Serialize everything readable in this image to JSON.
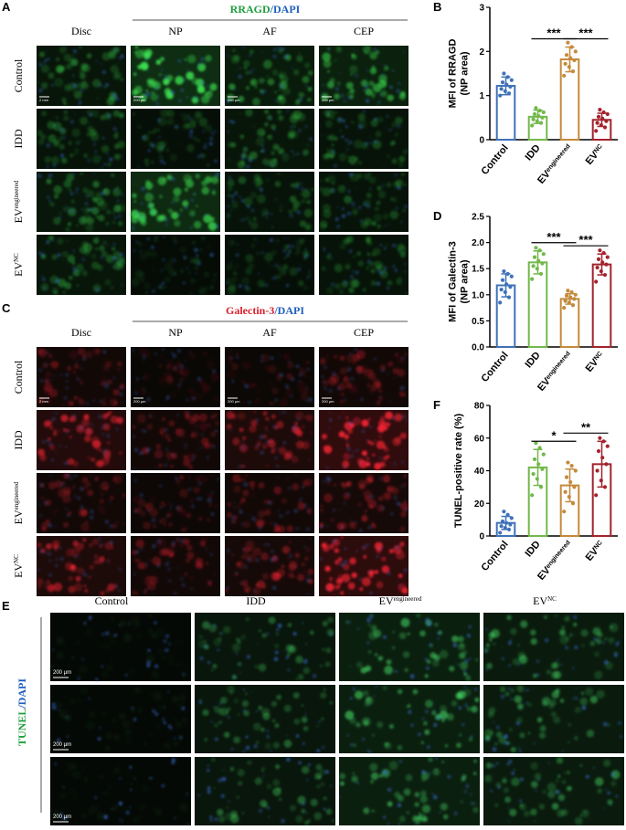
{
  "panel_a": {
    "letter": "A",
    "title": {
      "marker": "RRAGD",
      "stain": "/DAPI"
    },
    "columns": [
      "Disc",
      "NP",
      "AF",
      "CEP"
    ],
    "rows": [
      {
        "base": "Control"
      },
      {
        "base": "IDD"
      },
      {
        "base": "EV",
        "sup": "engineered"
      },
      {
        "base": "EV",
        "sup": "NC"
      }
    ],
    "scale_bars": [
      "2 mm",
      "200 μm",
      "200 μm",
      "200 μm"
    ]
  },
  "panel_c": {
    "letter": "C",
    "title": {
      "marker": "Galectin-3",
      "stain": "/DAPI"
    },
    "columns": [
      "Disc",
      "NP",
      "AF",
      "CEP"
    ],
    "rows": [
      {
        "base": "Control"
      },
      {
        "base": "IDD"
      },
      {
        "base": "EV",
        "sup": "engineered"
      },
      {
        "base": "EV",
        "sup": "NC"
      }
    ],
    "scale_bars": [
      "2 mm",
      "200 μm",
      "200 μm",
      "200 μm"
    ]
  },
  "panel_e": {
    "letter": "E",
    "title": {
      "marker": "TUNEL",
      "stain": "/DAPI"
    },
    "columns": [
      {
        "base": "Control"
      },
      {
        "base": "IDD"
      },
      {
        "base": "EV",
        "sup": "engineered"
      },
      {
        "base": "EV",
        "sup": "NC"
      }
    ],
    "scale_bars": [
      "200 μm",
      "200 μm",
      "200 μm"
    ]
  },
  "chart_data": [
    {
      "type": "bar",
      "letter": "B",
      "y_label": [
        "MFI of RRAGD",
        "(NP area)"
      ],
      "categories": [
        "Control",
        "IDD",
        "EV",
        "EV"
      ],
      "category_superscripts": [
        null,
        null,
        "engineered",
        "NC"
      ],
      "colors": [
        "#3f72b8",
        "#72b84a",
        "#c48a3c",
        "#a3232d"
      ],
      "values": [
        1.22,
        0.52,
        1.82,
        0.45
      ],
      "errors": [
        0.2,
        0.15,
        0.28,
        0.15
      ],
      "points": [
        [
          1.0,
          1.05,
          1.1,
          1.15,
          1.2,
          1.25,
          1.3,
          1.35,
          1.42,
          1.5
        ],
        [
          0.32,
          0.38,
          0.42,
          0.46,
          0.5,
          0.54,
          0.58,
          0.62,
          0.66,
          0.72
        ],
        [
          1.45,
          1.55,
          1.65,
          1.72,
          1.8,
          1.85,
          1.92,
          2.0,
          2.1,
          2.2
        ],
        [
          0.2,
          0.28,
          0.33,
          0.38,
          0.42,
          0.48,
          0.52,
          0.58,
          0.62,
          0.68
        ]
      ],
      "ylim": [
        0,
        3
      ],
      "yticks": [
        0,
        1,
        2,
        3
      ],
      "comparisons": [
        {
          "label": "***",
          "between": [
            1,
            2
          ]
        },
        {
          "label": "***",
          "between": [
            2,
            3
          ]
        }
      ]
    },
    {
      "type": "bar",
      "letter": "D",
      "y_label": [
        "MFI of Galectin-3",
        "(NP area)"
      ],
      "categories": [
        "Control",
        "IDD",
        "EV",
        "EV"
      ],
      "category_superscripts": [
        null,
        null,
        "engineered",
        "NC"
      ],
      "colors": [
        "#3f72b8",
        "#72b84a",
        "#c48a3c",
        "#a3232d"
      ],
      "values": [
        1.18,
        1.62,
        0.92,
        1.58
      ],
      "errors": [
        0.22,
        0.22,
        0.1,
        0.2
      ],
      "points": [
        [
          0.85,
          0.95,
          1.05,
          1.1,
          1.15,
          1.2,
          1.28,
          1.35,
          1.4,
          1.45
        ],
        [
          1.3,
          1.4,
          1.5,
          1.55,
          1.6,
          1.65,
          1.72,
          1.78,
          1.85,
          1.9
        ],
        [
          0.75,
          0.8,
          0.85,
          0.88,
          0.92,
          0.95,
          0.98,
          1.0,
          1.05,
          1.08
        ],
        [
          1.25,
          1.38,
          1.45,
          1.52,
          1.58,
          1.62,
          1.68,
          1.72,
          1.8,
          1.85
        ]
      ],
      "ylim": [
        0,
        2.5
      ],
      "yticks": [
        {
          "value": 0,
          "label": "0.0"
        },
        0.5,
        {
          "value": 1,
          "label": "1.0"
        },
        1.5,
        {
          "value": 2,
          "label": "2.0"
        },
        2.5
      ],
      "comparisons": [
        {
          "label": "***",
          "between": [
            1,
            2
          ]
        },
        {
          "label": "***",
          "between": [
            2,
            3
          ]
        }
      ]
    },
    {
      "type": "bar",
      "letter": "F",
      "y_label": [
        "TUNEL-positive rate (%)"
      ],
      "categories": [
        "Control",
        "IDD",
        "EV",
        "EV"
      ],
      "category_superscripts": [
        null,
        null,
        "engineered",
        "NC"
      ],
      "colors": [
        "#3f72b8",
        "#72b84a",
        "#c48a3c",
        "#a3232d"
      ],
      "values": [
        8,
        42,
        31,
        44
      ],
      "errors": [
        4,
        11,
        10,
        14
      ],
      "points": [
        [
          2,
          4,
          5,
          6,
          7,
          8,
          9,
          11,
          13,
          15
        ],
        [
          25,
          30,
          35,
          38,
          41,
          44,
          47,
          50,
          54,
          57
        ],
        [
          15,
          20,
          24,
          27,
          30,
          33,
          36,
          40,
          43,
          45
        ],
        [
          25,
          30,
          34,
          40,
          44,
          48,
          52,
          55,
          58,
          60
        ]
      ],
      "ylim": [
        0,
        80
      ],
      "yticks": [
        0,
        20,
        40,
        60,
        80
      ],
      "comparisons": [
        {
          "label": "*",
          "between": [
            1,
            2
          ]
        },
        {
          "label": "**",
          "between": [
            2,
            3
          ]
        }
      ]
    }
  ]
}
